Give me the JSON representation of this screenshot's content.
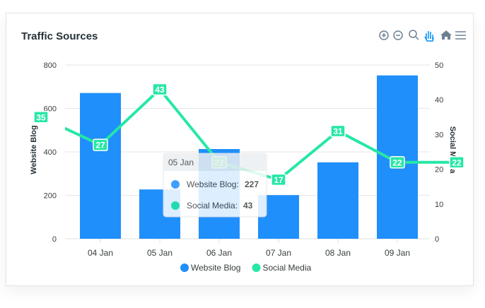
{
  "chart_data": {
    "type": "combo",
    "title": "Traffic Sources",
    "categories": [
      null,
      "04 Jan",
      "05 Jan",
      "06 Jan",
      "07 Jan",
      "08 Jan",
      "09 Jan",
      null
    ],
    "series": [
      {
        "name": "Website Blog",
        "type": "bar",
        "color": "#1f8ffb",
        "values": [
          null,
          671,
          227,
          413,
          201,
          352,
          752,
          null
        ]
      },
      {
        "name": "Social Media",
        "type": "line",
        "axis": "y2",
        "color": "#26e7a6",
        "values": [
          35,
          27,
          43,
          22,
          17,
          31,
          22,
          22
        ]
      }
    ],
    "ylabel": "Website Blog",
    "y2label": "Social Media",
    "ylim": [
      0,
      800
    ],
    "yticks": [
      0,
      200,
      400,
      600,
      800
    ],
    "y2lim": [
      0,
      50
    ],
    "y2ticks": [
      0,
      10,
      20,
      30,
      40,
      50
    ],
    "grid": true,
    "legend": "bottom",
    "tooltip": {
      "title": "05 Jan",
      "items": [
        {
          "label": "Website Blog:",
          "value": 227
        },
        {
          "label": "Social Media:",
          "value": 43
        }
      ]
    }
  }
}
